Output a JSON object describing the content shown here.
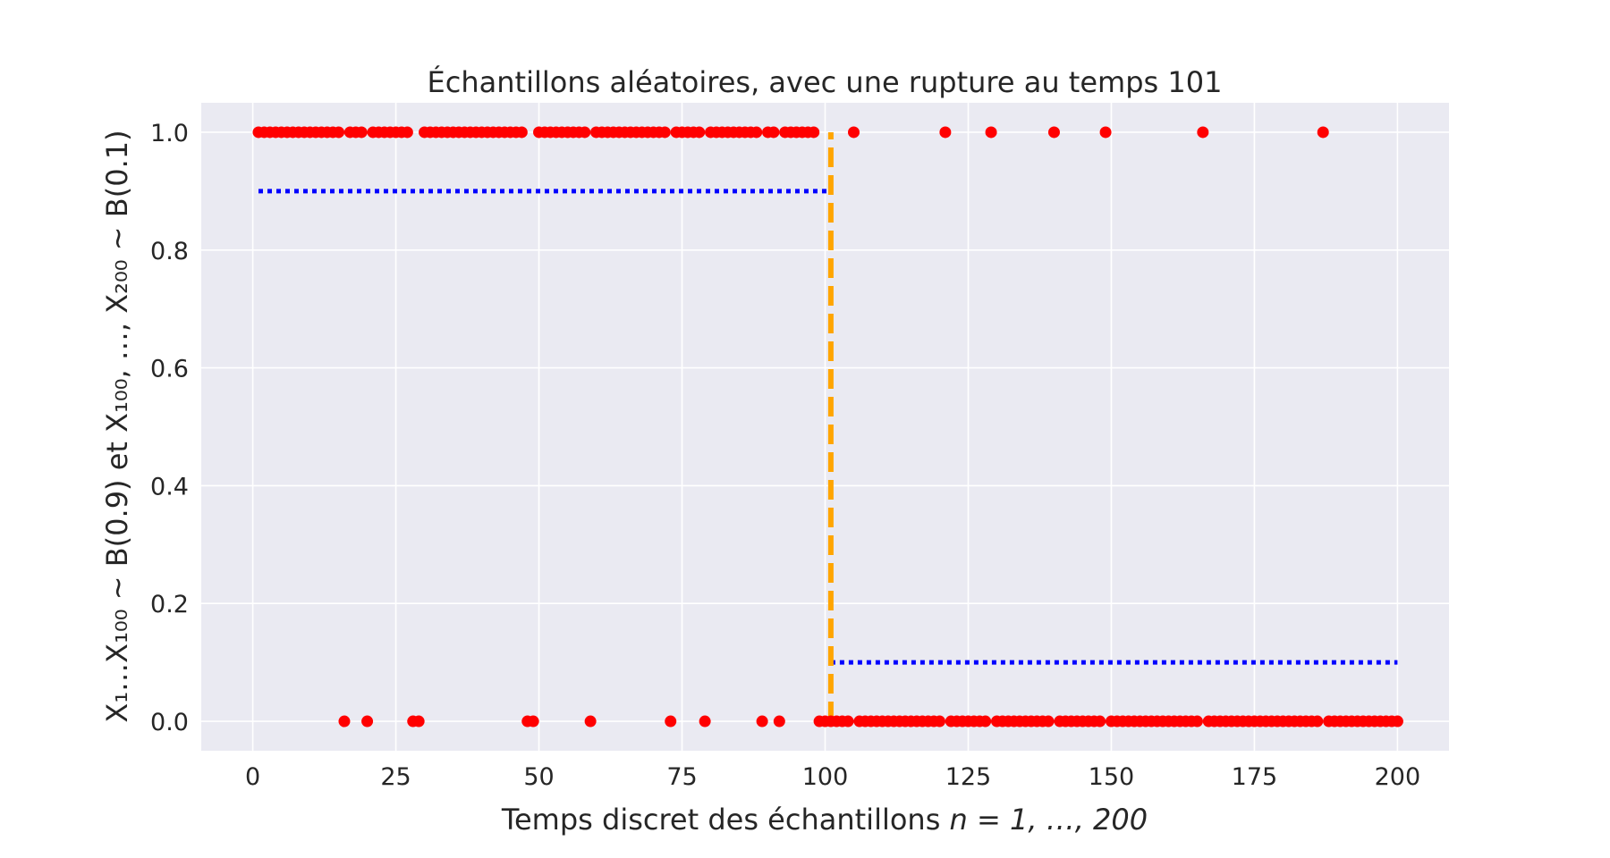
{
  "chart_data": {
    "type": "scatter",
    "title": "Échantillons aléatoires, avec une rupture au temps 101",
    "xlabel": {
      "prefix": "Temps discret des échantillons ",
      "math": "n = 1, …, 200"
    },
    "ylabel": {
      "text": "X₁…X₁₀₀ ~ B(0.9) et X₁₀₀, …, X₂₀₀ ~ B(0.1)"
    },
    "xlim": [
      -9,
      209
    ],
    "ylim": [
      -0.05,
      1.05
    ],
    "xticks": [
      0,
      25,
      50,
      75,
      100,
      125,
      150,
      175,
      200
    ],
    "xtick_labels": [
      "0",
      "25",
      "50",
      "75",
      "100",
      "125",
      "150",
      "175",
      "200"
    ],
    "yticks": [
      0.0,
      0.2,
      0.4,
      0.6,
      0.8,
      1.0
    ],
    "ytick_labels": [
      "0.0",
      "0.2",
      "0.4",
      "0.6",
      "0.8",
      "1.0"
    ],
    "grid": true,
    "background": "#eaeaf2",
    "zeros_at": [
      16,
      20,
      28,
      29,
      48,
      49,
      59,
      73,
      79,
      89,
      92,
      99,
      100,
      101,
      102,
      103,
      104,
      106,
      107,
      108,
      109,
      110,
      111,
      112,
      113,
      114,
      115,
      116,
      117,
      118,
      119,
      120,
      122,
      123,
      124,
      125,
      126,
      127,
      128,
      130,
      131,
      132,
      133,
      134,
      135,
      136,
      137,
      138,
      139,
      141,
      142,
      143,
      144,
      145,
      146,
      147,
      148,
      150,
      151,
      152,
      153,
      154,
      155,
      156,
      157,
      158,
      159,
      160,
      161,
      162,
      163,
      164,
      165,
      167,
      168,
      169,
      170,
      171,
      172,
      173,
      174,
      175,
      176,
      177,
      178,
      179,
      180,
      181,
      182,
      183,
      184,
      185,
      186,
      188,
      189,
      190,
      191,
      192,
      193,
      194,
      195,
      196,
      197,
      198,
      199,
      200
    ],
    "series": [
      {
        "kind": "scatter",
        "color": "#ff0000",
        "x_from": 1,
        "x_to": 200,
        "values_rule": "1 unless index in zeros_at"
      },
      {
        "kind": "mean-line",
        "color": "#0000ff",
        "style": "dotted",
        "segments": [
          {
            "x": [
              1,
              101
            ],
            "y": 0.9
          },
          {
            "x": [
              101,
              200
            ],
            "y": 0.1
          }
        ]
      },
      {
        "kind": "change-point",
        "color": "#ffa500",
        "style": "dashed",
        "x": 101,
        "y": [
          0,
          1
        ]
      }
    ]
  }
}
